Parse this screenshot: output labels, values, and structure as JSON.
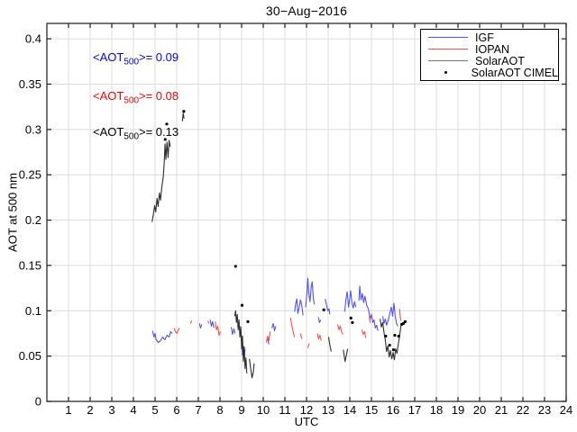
{
  "chart_data": {
    "type": "line",
    "title": "30−Aug−2016",
    "xlabel": "UTC",
    "ylabel": "AOT at 500 nm",
    "xlim": [
      0,
      24
    ],
    "ylim": [
      0,
      0.417
    ],
    "xticks": [
      1,
      2,
      3,
      4,
      5,
      6,
      7,
      8,
      9,
      10,
      11,
      12,
      13,
      14,
      15,
      16,
      17,
      18,
      19,
      20,
      21,
      22,
      23,
      24
    ],
    "yticks": [
      0,
      0.05,
      0.1,
      0.15,
      0.2,
      0.25,
      0.3,
      0.35,
      0.4
    ],
    "ytick_labels": [
      "0",
      "0.05",
      "0.1",
      "0.15",
      "0.2",
      "0.25",
      "0.3",
      "0.35",
      "0.4"
    ],
    "grid": true,
    "grid_color": "#dcdcdc",
    "axis_color": "#2b2b2b",
    "legend_position": "top-right",
    "annotations": [
      {
        "pre": "<AOT",
        "sub": "500",
        "post": ">= 0.09",
        "color": "#0000ff"
      },
      {
        "pre": "<AOT",
        "sub": "500",
        "post": ">= 0.08",
        "color": "#ff0000"
      },
      {
        "pre": "<AOT",
        "sub": "500",
        "post": ">= 0.13",
        "color": "#000000"
      }
    ],
    "series": [
      {
        "name": "IGF",
        "color": "#5050ff",
        "style": "line",
        "segments": [
          [
            [
              4.88,
              0.078
            ],
            [
              4.95,
              0.071
            ],
            [
              5.0,
              0.075
            ],
            [
              5.05,
              0.068
            ],
            [
              5.15,
              0.065
            ],
            [
              5.25,
              0.067
            ],
            [
              5.35,
              0.071
            ],
            [
              5.45,
              0.068
            ],
            [
              5.55,
              0.073
            ],
            [
              5.65,
              0.071
            ],
            [
              5.72,
              0.077
            ],
            [
              5.8,
              0.075
            ]
          ],
          [
            [
              7.05,
              0.086
            ],
            [
              7.1,
              0.081
            ],
            [
              7.16,
              0.085
            ]
          ],
          [
            [
              7.55,
              0.09
            ],
            [
              7.6,
              0.083
            ],
            [
              7.66,
              0.088
            ],
            [
              7.72,
              0.081
            ]
          ],
          [
            [
              8.52,
              0.082
            ],
            [
              8.58,
              0.074
            ],
            [
              8.64,
              0.08
            ],
            [
              8.7,
              0.075
            ]
          ],
          [
            [
              8.95,
              0.083
            ],
            [
              9.0,
              0.068
            ],
            [
              9.04,
              0.051
            ],
            [
              9.08,
              0.061
            ],
            [
              9.12,
              0.048
            ],
            [
              9.16,
              0.058
            ]
          ],
          [
            [
              10.2,
              0.069
            ],
            [
              10.26,
              0.063
            ]
          ],
          [
            [
              10.4,
              0.081
            ],
            [
              10.46,
              0.086
            ],
            [
              10.52,
              0.078
            ],
            [
              10.58,
              0.083
            ]
          ],
          [
            [
              11.45,
              0.099
            ],
            [
              11.5,
              0.108
            ],
            [
              11.55,
              0.113
            ],
            [
              11.6,
              0.097
            ],
            [
              11.66,
              0.104
            ],
            [
              11.72,
              0.112
            ],
            [
              11.78,
              0.106
            ],
            [
              11.84,
              0.095
            ]
          ],
          [
            [
              11.96,
              0.104
            ],
            [
              12.02,
              0.12
            ],
            [
              12.06,
              0.136
            ],
            [
              12.1,
              0.12
            ],
            [
              12.16,
              0.11
            ],
            [
              12.22,
              0.127
            ],
            [
              12.26,
              0.132
            ],
            [
              12.32,
              0.113
            ],
            [
              12.36,
              0.107
            ]
          ],
          [
            [
              12.55,
              0.093
            ],
            [
              12.6,
              0.087
            ],
            [
              12.66,
              0.09
            ]
          ],
          [
            [
              12.86,
              0.113
            ],
            [
              12.92,
              0.107
            ],
            [
              12.98,
              0.1
            ],
            [
              13.04,
              0.102
            ],
            [
              13.08,
              0.096
            ]
          ],
          [
            [
              13.76,
              0.099
            ],
            [
              13.82,
              0.112
            ],
            [
              13.88,
              0.121
            ],
            [
              13.94,
              0.104
            ],
            [
              14.0,
              0.114
            ],
            [
              14.04,
              0.122
            ],
            [
              14.1,
              0.108
            ],
            [
              14.16,
              0.103
            ],
            [
              14.22,
              0.11
            ],
            [
              14.28,
              0.104
            ]
          ],
          [
            [
              14.42,
              0.111
            ],
            [
              14.46,
              0.127
            ],
            [
              14.52,
              0.112
            ],
            [
              14.58,
              0.119
            ],
            [
              14.64,
              0.109
            ],
            [
              14.7,
              0.116
            ],
            [
              14.78,
              0.106
            ],
            [
              14.86,
              0.102
            ],
            [
              14.94,
              0.091
            ],
            [
              15.0,
              0.096
            ],
            [
              15.06,
              0.087
            ],
            [
              15.12,
              0.09
            ],
            [
              15.18,
              0.081
            ],
            [
              15.24,
              0.084
            ],
            [
              15.3,
              0.078
            ]
          ],
          [
            [
              15.52,
              0.094
            ],
            [
              15.58,
              0.086
            ],
            [
              15.64,
              0.091
            ],
            [
              15.7,
              0.084
            ],
            [
              15.78,
              0.09
            ],
            [
              15.86,
              0.098
            ],
            [
              15.92,
              0.104
            ],
            [
              15.98,
              0.094
            ],
            [
              16.04,
              0.108
            ],
            [
              16.1,
              0.094
            ],
            [
              16.16,
              0.086
            ],
            [
              16.22,
              0.083
            ]
          ]
        ]
      },
      {
        "name": "IOPAN",
        "color": "#ff4a4a",
        "style": "line",
        "segments": [
          [
            [
              5.88,
              0.081
            ],
            [
              5.94,
              0.077
            ],
            [
              6.0,
              0.075
            ],
            [
              6.06,
              0.078
            ],
            [
              6.12,
              0.081
            ]
          ],
          [
            [
              6.64,
              0.086
            ],
            [
              6.7,
              0.089
            ]
          ],
          [
            [
              7.44,
              0.089
            ],
            [
              7.49,
              0.086
            ]
          ],
          [
            [
              7.78,
              0.088
            ],
            [
              7.84,
              0.079
            ],
            [
              7.9,
              0.083
            ],
            [
              7.96,
              0.073
            ],
            [
              8.02,
              0.077
            ]
          ],
          [
            [
              10.14,
              0.065
            ],
            [
              10.2,
              0.072
            ],
            [
              10.26,
              0.067
            ],
            [
              10.32,
              0.077
            ]
          ],
          [
            [
              11.26,
              0.092
            ],
            [
              11.32,
              0.084
            ],
            [
              11.38,
              0.077
            ],
            [
              11.44,
              0.071
            ]
          ],
          [
            [
              11.72,
              0.075
            ],
            [
              11.78,
              0.069
            ]
          ],
          [
            [
              12.06,
              0.059
            ],
            [
              12.12,
              0.064
            ]
          ],
          [
            [
              12.5,
              0.075
            ],
            [
              12.56,
              0.069
            ],
            [
              12.62,
              0.073
            ],
            [
              12.68,
              0.067
            ]
          ],
          [
            [
              13.44,
              0.085
            ],
            [
              13.5,
              0.079
            ],
            [
              13.56,
              0.083
            ],
            [
              13.62,
              0.077
            ],
            [
              13.68,
              0.074
            ]
          ],
          [
            [
              14.56,
              0.079
            ],
            [
              14.62,
              0.074
            ],
            [
              14.68,
              0.077
            ],
            [
              14.74,
              0.07
            ]
          ],
          [
            [
              14.9,
              0.094
            ],
            [
              14.94,
              0.087
            ]
          ],
          [
            [
              16.3,
              0.102
            ],
            [
              16.33,
              0.094
            ],
            [
              16.36,
              0.089
            ]
          ]
        ]
      },
      {
        "name": "SolarAOT",
        "color": "#2e2e2e",
        "style": "line",
        "segments": [
          [
            [
              4.86,
              0.198
            ],
            [
              4.92,
              0.206
            ],
            [
              4.98,
              0.216
            ],
            [
              5.03,
              0.209
            ],
            [
              5.09,
              0.224
            ],
            [
              5.14,
              0.215
            ],
            [
              5.2,
              0.23
            ],
            [
              5.25,
              0.222
            ],
            [
              5.31,
              0.236
            ],
            [
              5.38,
              0.248
            ],
            [
              5.42,
              0.262
            ],
            [
              5.46,
              0.284
            ],
            [
              5.5,
              0.267
            ],
            [
              5.55,
              0.286
            ],
            [
              5.6,
              0.269
            ],
            [
              5.65,
              0.288
            ],
            [
              5.7,
              0.281
            ]
          ],
          [
            [
              6.26,
              0.309
            ],
            [
              6.3,
              0.318
            ],
            [
              6.34,
              0.312
            ]
          ],
          [
            [
              8.68,
              0.094
            ],
            [
              8.72,
              0.1
            ],
            [
              8.76,
              0.087
            ],
            [
              8.8,
              0.096
            ],
            [
              8.84,
              0.079
            ],
            [
              8.88,
              0.09
            ],
            [
              8.92,
              0.071
            ],
            [
              8.96,
              0.082
            ],
            [
              9.0,
              0.058
            ],
            [
              9.04,
              0.072
            ],
            [
              9.08,
              0.044
            ],
            [
              9.12,
              0.06
            ],
            [
              9.16,
              0.036
            ],
            [
              9.2,
              0.048
            ],
            [
              9.24,
              0.031
            ]
          ],
          [
            [
              9.36,
              0.047
            ],
            [
              9.42,
              0.036
            ],
            [
              9.48,
              0.026
            ],
            [
              9.54,
              0.032
            ],
            [
              9.58,
              0.042
            ]
          ],
          [
            [
              13.02,
              0.071
            ],
            [
              13.08,
              0.062
            ],
            [
              13.14,
              0.055
            ]
          ],
          [
            [
              13.7,
              0.057
            ],
            [
              13.78,
              0.044
            ],
            [
              13.9,
              0.058
            ]
          ],
          [
            [
              15.4,
              0.091
            ],
            [
              15.46,
              0.082
            ],
            [
              15.52,
              0.087
            ],
            [
              15.58,
              0.076
            ],
            [
              15.64,
              0.068
            ],
            [
              15.7,
              0.055
            ],
            [
              15.76,
              0.061
            ],
            [
              15.82,
              0.049
            ],
            [
              15.88,
              0.056
            ],
            [
              15.94,
              0.047
            ],
            [
              16.0,
              0.054
            ],
            [
              16.06,
              0.046
            ],
            [
              16.12,
              0.058
            ],
            [
              16.18,
              0.053
            ],
            [
              16.24,
              0.063
            ],
            [
              16.3,
              0.072
            ],
            [
              16.36,
              0.083
            ],
            [
              16.4,
              0.086
            ]
          ]
        ]
      },
      {
        "name": "SolarAOT CIMEL",
        "color": "#000000",
        "style": "scatter",
        "points": [
          [
            5.47,
            0.289
          ],
          [
            5.54,
            0.306
          ],
          [
            6.33,
            0.32
          ],
          [
            8.72,
            0.149
          ],
          [
            9.02,
            0.106
          ],
          [
            9.29,
            0.088
          ],
          [
            12.8,
            0.101
          ],
          [
            14.05,
            0.092
          ],
          [
            14.12,
            0.087
          ],
          [
            15.66,
            0.072
          ],
          [
            15.84,
            0.062
          ],
          [
            16.02,
            0.057
          ],
          [
            16.08,
            0.073
          ],
          [
            16.26,
            0.072
          ],
          [
            16.4,
            0.085
          ],
          [
            16.48,
            0.086
          ],
          [
            16.56,
            0.088
          ]
        ]
      }
    ]
  }
}
